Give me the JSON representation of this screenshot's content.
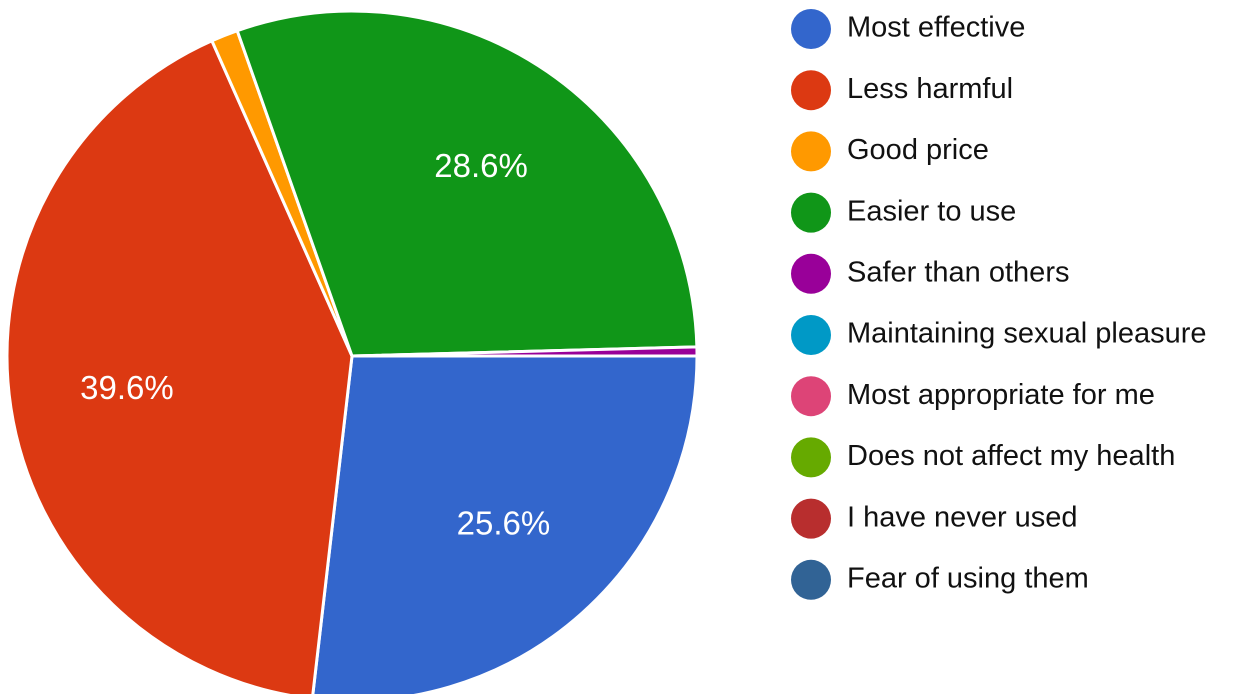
{
  "chart_data": {
    "type": "pie",
    "title": "",
    "legend_position": "right",
    "slices": [
      {
        "label": "Most effective",
        "value": 25.6,
        "display": "25.6%",
        "color": "#3366cc"
      },
      {
        "label": "Less harmful",
        "value": 39.6,
        "display": "39.6%",
        "color": "#dc3912"
      },
      {
        "label": "Good price",
        "value": 1.2,
        "display": "",
        "color": "#ff9900"
      },
      {
        "label": "Easier to use",
        "value": 28.6,
        "display": "28.6%",
        "color": "#109618"
      },
      {
        "label": "Safer than others",
        "value": 0.4,
        "display": "",
        "color": "#990099"
      },
      {
        "label": "Maintaining sexual pleasure",
        "value": 0,
        "display": "",
        "color": "#0099c6"
      },
      {
        "label": "Most appropriate for me",
        "value": 0,
        "display": "",
        "color": "#dd4477"
      },
      {
        "label": "Does not affect my health",
        "value": 0,
        "display": "",
        "color": "#66aa00"
      },
      {
        "label": "I have never used",
        "value": 0,
        "display": "",
        "color": "#b82e2e"
      },
      {
        "label": "Fear of using them",
        "value": 0,
        "display": "",
        "color": "#316395"
      }
    ]
  }
}
